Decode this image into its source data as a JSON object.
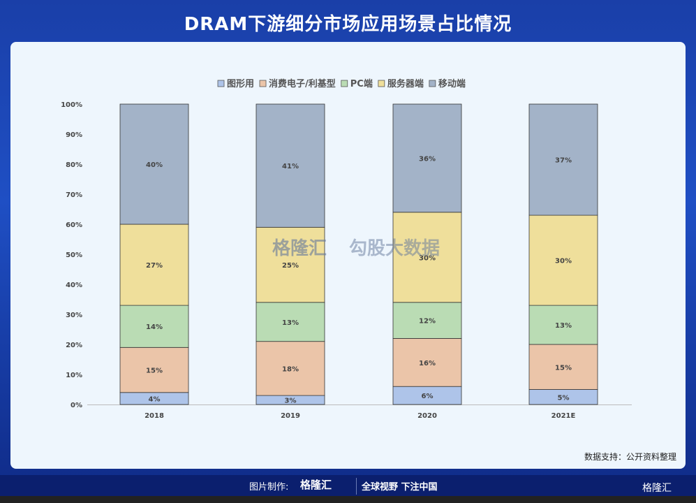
{
  "title": "DRAM下游细分市场应用场景占比情况",
  "source": "数据支持：公开资料整理",
  "footer": {
    "made_by": "图片制作:",
    "logo": "格隆汇",
    "slogan": "全球视野 下注中国",
    "corner_logo": "格隆汇"
  },
  "watermark": {
    "logo": "格隆汇",
    "text": "勾股大数据"
  },
  "chart_data": {
    "type": "bar",
    "stacked": true,
    "percent": true,
    "categories": [
      "2018",
      "2019",
      "2020",
      "2021E"
    ],
    "yticks": [
      "0%",
      "10%",
      "20%",
      "30%",
      "40%",
      "50%",
      "60%",
      "70%",
      "80%",
      "90%",
      "100%"
    ],
    "ylim": [
      0,
      100
    ],
    "legend_position": "top",
    "grid": false,
    "series": [
      {
        "name": "图形用",
        "color": "#aec4e9",
        "values": [
          4,
          3,
          6,
          5
        ],
        "labels": [
          "4%",
          "3%",
          "6%",
          "5%"
        ]
      },
      {
        "name": "消费电子/利基型",
        "color": "#ebc5a9",
        "values": [
          15,
          18,
          16,
          15
        ],
        "labels": [
          "15%",
          "18%",
          "16%",
          "15%"
        ]
      },
      {
        "name": "PC端",
        "color": "#badcb4",
        "values": [
          14,
          13,
          12,
          13
        ],
        "labels": [
          "14%",
          "13%",
          "12%",
          "13%"
        ]
      },
      {
        "name": "服务器端",
        "color": "#efdf9b",
        "values": [
          27,
          25,
          30,
          30
        ],
        "labels": [
          "27%",
          "25%",
          "30%",
          "30%"
        ]
      },
      {
        "name": "移动端",
        "color": "#a3b3c8",
        "values": [
          40,
          41,
          36,
          37
        ],
        "labels": [
          "40%",
          "41%",
          "36%",
          "37%"
        ]
      }
    ]
  }
}
